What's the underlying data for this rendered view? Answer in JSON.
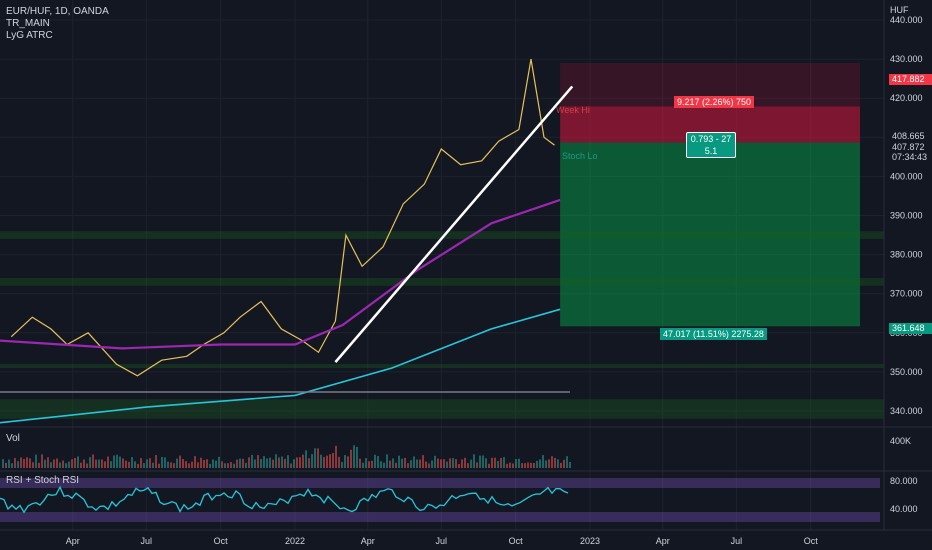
{
  "legend": {
    "symbol_line": "EUR/HUF, 1D, OANDA",
    "indicator_1": "TR_MAIN",
    "indicator_2": "LyG ATRC"
  },
  "price_axis": {
    "currency": "HUF",
    "ticks": [
      "440.000",
      "430.000",
      "420.000",
      "410.000",
      "400.000",
      "390.000",
      "380.000",
      "370.000",
      "360.000",
      "350.000",
      "340.000"
    ],
    "price_boxes": {
      "stop_price": "417.882",
      "price_a": "408.665",
      "price_b": "407.872",
      "countdown": "07:34:43",
      "target_price": "361.648"
    }
  },
  "volume_pane": {
    "label": "Vol",
    "axis_tick": "400K"
  },
  "rsi_pane": {
    "label": "RSI + Stoch RSI",
    "axis_ticks": [
      "80.000",
      "40.000"
    ]
  },
  "time_axis": {
    "labels": [
      "Apr",
      "Jul",
      "Oct",
      "2022",
      "Apr",
      "Jul",
      "Oct",
      "2023",
      "Apr",
      "Jul",
      "Oct"
    ]
  },
  "position_tool": {
    "stop_label": "9.217 (2.26%) 750",
    "ratio_label_line1": "0.793 - 27",
    "ratio_label_line2": "5.1",
    "target_label": "47.017 (11.51%) 2275.28"
  },
  "annotations": {
    "week_hi": "Week Hi",
    "stoch_lo": "Stoch Lo"
  },
  "colors": {
    "background": "#131722",
    "stop_zone": "#ff1744",
    "target_zone": "#00c853",
    "ma_purple": "#9c27b0",
    "ma_teal": "#26c6da",
    "trendline": "#ffffff",
    "rsi_line": "#26c6da"
  },
  "chart_data": {
    "type": "line",
    "ylim": [
      336,
      444
    ],
    "price_path": [
      [
        "2021-01-15",
        359
      ],
      [
        "2021-02-10",
        364
      ],
      [
        "2021-03-05",
        361
      ],
      [
        "2021-03-25",
        357
      ],
      [
        "2021-04-20",
        360
      ],
      [
        "2021-05-25",
        352
      ],
      [
        "2021-06-20",
        349
      ],
      [
        "2021-07-20",
        353
      ],
      [
        "2021-08-20",
        354
      ],
      [
        "2021-09-10",
        357
      ],
      [
        "2021-10-05",
        360
      ],
      [
        "2021-10-25",
        364
      ],
      [
        "2021-11-20",
        368
      ],
      [
        "2021-12-15",
        361
      ],
      [
        "2022-01-10",
        358
      ],
      [
        "2022-01-30",
        355
      ],
      [
        "2022-02-20",
        363
      ],
      [
        "2022-03-05",
        385
      ],
      [
        "2022-03-25",
        377
      ],
      [
        "2022-04-20",
        382
      ],
      [
        "2022-05-15",
        393
      ],
      [
        "2022-06-10",
        398
      ],
      [
        "2022-07-01",
        407
      ],
      [
        "2022-07-25",
        403
      ],
      [
        "2022-08-20",
        404
      ],
      [
        "2022-09-10",
        409
      ],
      [
        "2022-10-05",
        412
      ],
      [
        "2022-10-20",
        430
      ],
      [
        "2022-11-05",
        410
      ],
      [
        "2022-11-18",
        408
      ]
    ],
    "ma_long": [
      [
        "2021-01-01",
        358
      ],
      [
        "2021-06-01",
        356
      ],
      [
        "2021-10-01",
        357
      ],
      [
        "2022-01-01",
        357
      ],
      [
        "2022-03-01",
        362
      ],
      [
        "2022-06-01",
        376
      ],
      [
        "2022-09-01",
        388
      ],
      [
        "2022-11-25",
        394
      ]
    ],
    "ma_200": [
      [
        "2021-01-01",
        337
      ],
      [
        "2021-07-01",
        341
      ],
      [
        "2022-01-01",
        344
      ],
      [
        "2022-05-01",
        351
      ],
      [
        "2022-09-01",
        361
      ],
      [
        "2022-11-25",
        366
      ]
    ],
    "trendline": [
      [
        "2022-02-20",
        352.5
      ],
      [
        "2022-12-10",
        423
      ]
    ],
    "position": {
      "start": "2022-11-25",
      "end": "2023-12-01",
      "entry": 408.665,
      "stop": 417.882,
      "target": 361.648
    }
  }
}
